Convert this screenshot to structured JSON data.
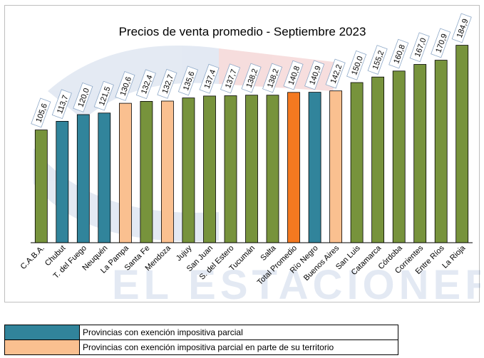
{
  "chart_data": {
    "type": "bar",
    "title": "Precios de venta promedio - Septiembre 2023",
    "xlabel": "",
    "ylabel": "",
    "ylim": [
      0,
      200
    ],
    "grid": false,
    "categories": [
      "C.A.B.A.",
      "Chubut",
      "T. del Fuego",
      "Neuquén",
      "La Pampa",
      "Santa Fe",
      "Mendoza",
      "Jujuy",
      "San Juan",
      "S. del Estero",
      "Tucumán",
      "Salta",
      "Total Promedio",
      "Río Negro",
      "Buenos Aires",
      "San Luis",
      "Catamarca",
      "Córdoba",
      "Corrientes",
      "Entre Ríos",
      "La Rioja"
    ],
    "values": [
      105.6,
      113.7,
      120.0,
      121.5,
      130.6,
      132.4,
      132.7,
      135.6,
      137.4,
      137.7,
      138.2,
      138.2,
      140.8,
      140.9,
      142.2,
      150.0,
      155.2,
      160.8,
      167.0,
      170.9,
      184.9
    ],
    "value_labels": [
      "105,6",
      "113,7",
      "120,0",
      "121,5",
      "130,6",
      "132,4",
      "132,7",
      "135,6",
      "137,4",
      "137,7",
      "138,2",
      "138,2",
      "140,8",
      "140,9",
      "142,2",
      "150,0",
      "155,2",
      "160,8",
      "167,0",
      "170,9",
      "184,9"
    ],
    "bar_groups": [
      "general",
      "exencion_parcial",
      "exencion_parcial",
      "exencion_parcial",
      "exencion_parte_territorio",
      "general",
      "exencion_parte_territorio",
      "general",
      "general",
      "general",
      "general",
      "general",
      "promedio",
      "exencion_parcial",
      "exencion_parte_territorio",
      "general",
      "general",
      "general",
      "general",
      "general",
      "general"
    ],
    "colors": {
      "general": "#77933c",
      "exencion_parcial": "#31849b",
      "exencion_parte_territorio": "#fac090",
      "promedio": "#f47920"
    }
  },
  "legend": [
    {
      "group": "exencion_parcial",
      "label": "Provincias con exención impositiva parcial"
    },
    {
      "group": "exencion_parte_territorio",
      "label": "Provincias con exención impositiva parcial en parte de su territorio"
    }
  ],
  "watermark": "EL ESTACIONERO"
}
